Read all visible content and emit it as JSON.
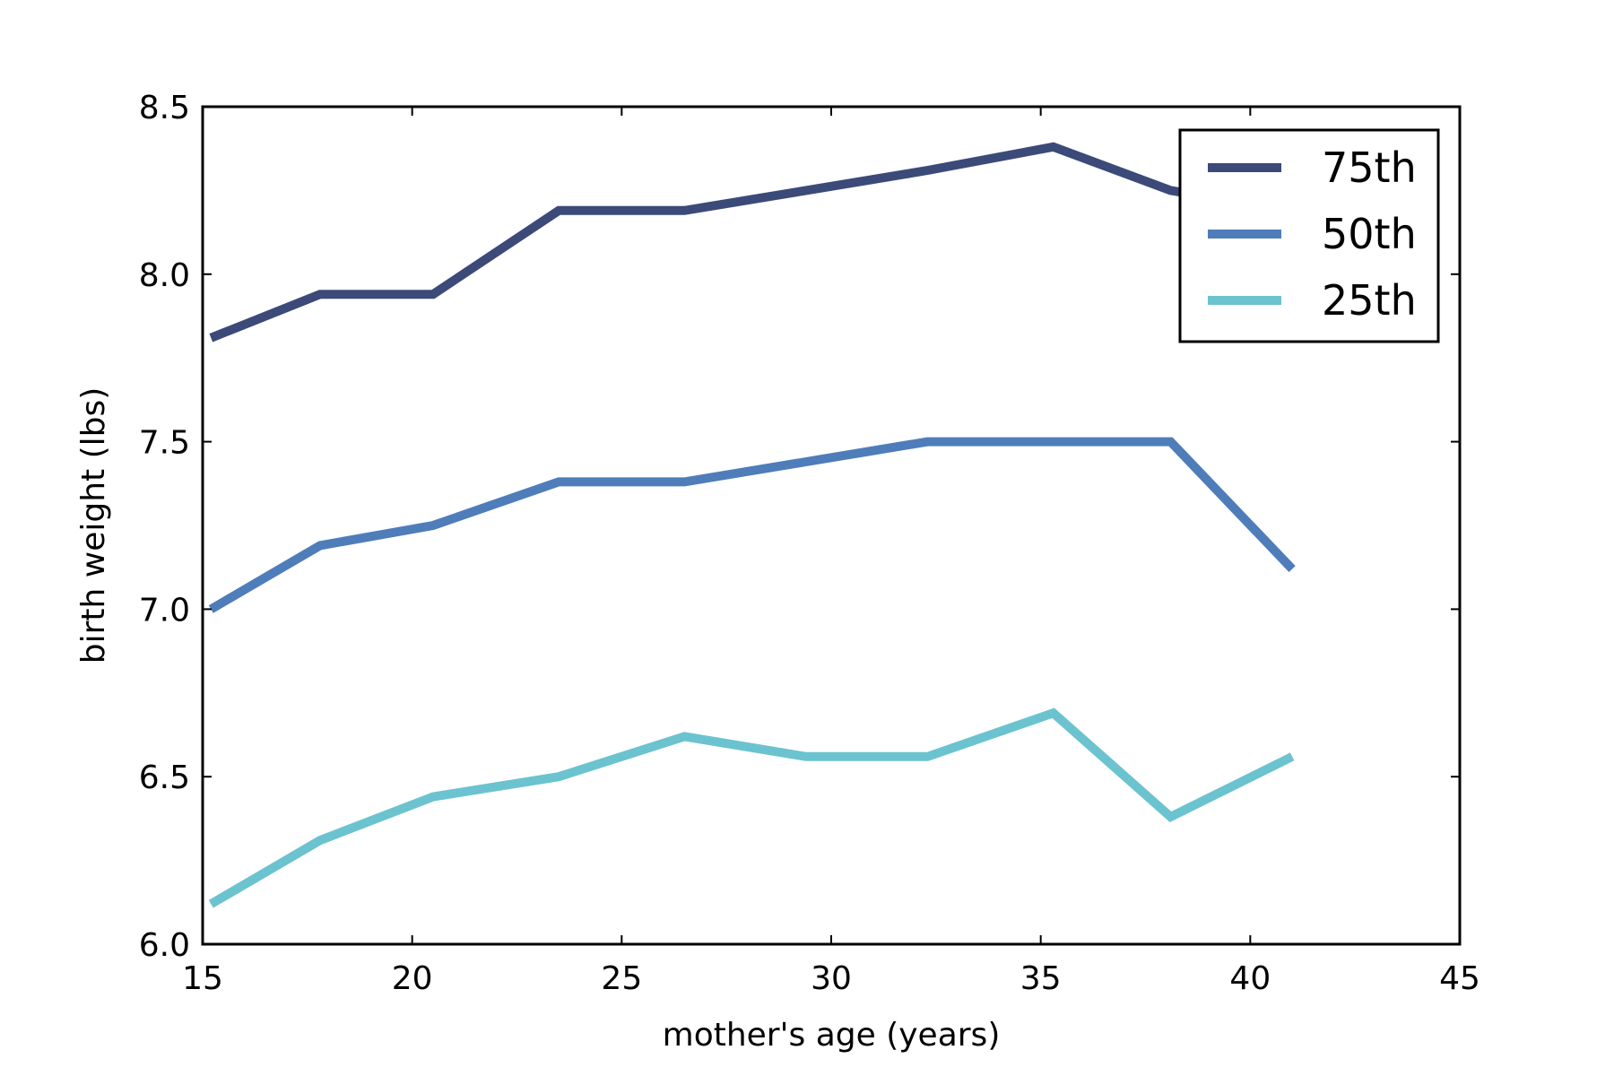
{
  "chart_data": {
    "type": "line",
    "title": "",
    "xlabel": "mother's age (years)",
    "ylabel": "birth weight (lbs)",
    "xlim": [
      15,
      45
    ],
    "ylim": [
      6.0,
      8.5
    ],
    "xticks": [
      15,
      20,
      25,
      30,
      35,
      40,
      45
    ],
    "yticks": [
      6.0,
      6.5,
      7.0,
      7.5,
      8.0,
      8.5
    ],
    "xtick_labels": [
      "15",
      "20",
      "25",
      "30",
      "35",
      "40",
      "45"
    ],
    "ytick_labels": [
      "6.0",
      "6.5",
      "7.0",
      "7.5",
      "8.0",
      "8.5"
    ],
    "grid": false,
    "legend_position": "top-right",
    "x": [
      15.2,
      17.8,
      20.5,
      23.5,
      26.5,
      29.4,
      32.3,
      35.3,
      38.1,
      41.0
    ],
    "series": [
      {
        "name": "75th",
        "color": "#3b4a78",
        "values": [
          7.81,
          7.94,
          7.94,
          8.19,
          8.19,
          8.25,
          8.31,
          8.38,
          8.25,
          8.19
        ]
      },
      {
        "name": "50th",
        "color": "#4e7dba",
        "values": [
          7.0,
          7.19,
          7.25,
          7.38,
          7.38,
          7.44,
          7.5,
          7.5,
          7.5,
          7.12
        ]
      },
      {
        "name": "25th",
        "color": "#6bc3cf",
        "values": [
          6.12,
          6.31,
          6.44,
          6.5,
          6.62,
          6.56,
          6.56,
          6.69,
          6.38,
          6.56
        ]
      }
    ]
  }
}
